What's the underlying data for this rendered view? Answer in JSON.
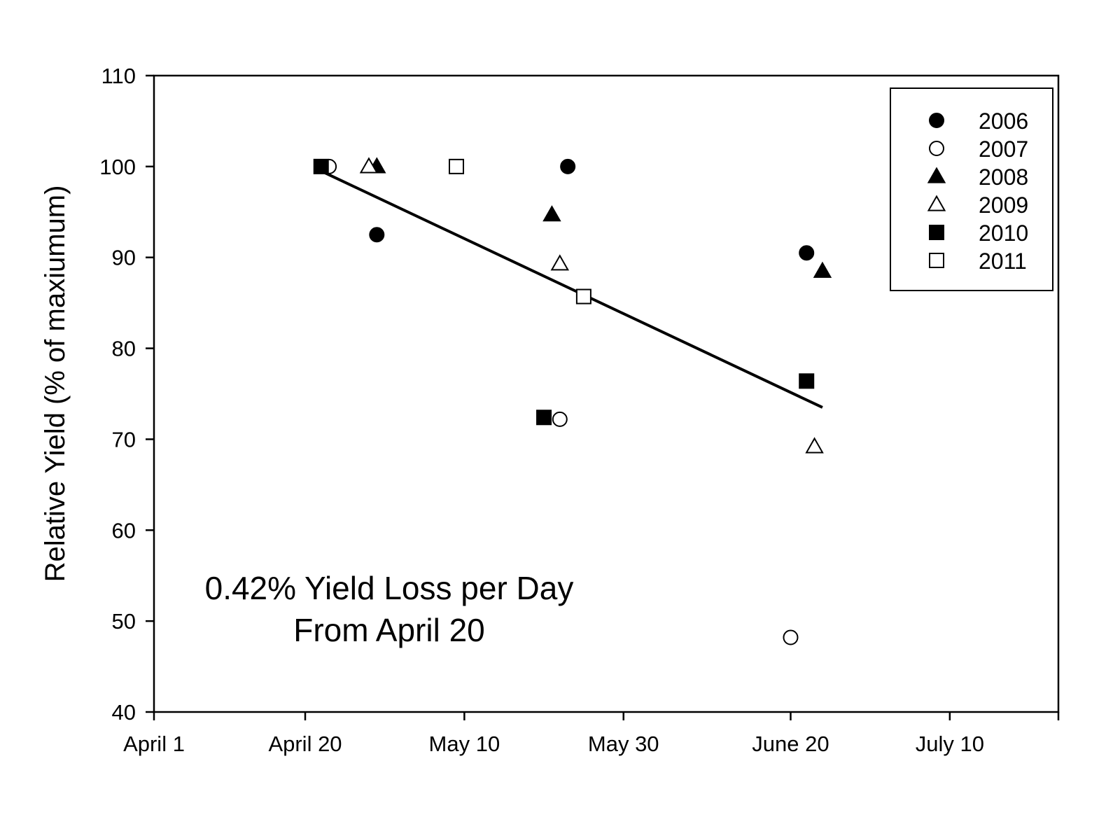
{
  "chart_data": {
    "type": "scatter",
    "title": "",
    "xlabel": "",
    "ylabel": "Relative Yield (% of maxiumum)",
    "x_tick_labels": [
      "April 1",
      "April 20",
      "May 10",
      "May 30",
      "June 20",
      "July 10"
    ],
    "y_ticks": [
      40,
      50,
      60,
      70,
      80,
      90,
      100,
      110
    ],
    "ylim": [
      40,
      110
    ],
    "legend_position": "top-right",
    "grid": false,
    "series": [
      {
        "name": "2006",
        "marker": "circle",
        "filled": true,
        "points": [
          {
            "x": "April 29",
            "y": 92.5
          },
          {
            "x": "May 23",
            "y": 100
          },
          {
            "x": "June 22",
            "y": 90.5
          }
        ]
      },
      {
        "name": "2007",
        "marker": "circle",
        "filled": false,
        "points": [
          {
            "x": "April 23",
            "y": 100
          },
          {
            "x": "May 22",
            "y": 72.2
          },
          {
            "x": "June 20",
            "y": 48.2
          }
        ]
      },
      {
        "name": "2008",
        "marker": "triangle",
        "filled": true,
        "points": [
          {
            "x": "April 29",
            "y": 100
          },
          {
            "x": "May 21",
            "y": 94.7
          },
          {
            "x": "June 24",
            "y": 88.5
          }
        ]
      },
      {
        "name": "2009",
        "marker": "triangle",
        "filled": false,
        "points": [
          {
            "x": "April 28",
            "y": 100
          },
          {
            "x": "May 22",
            "y": 89.3
          },
          {
            "x": "June 23",
            "y": 69.2
          }
        ]
      },
      {
        "name": "2010",
        "marker": "square",
        "filled": true,
        "points": [
          {
            "x": "April 22",
            "y": 100
          },
          {
            "x": "May 20",
            "y": 72.4
          },
          {
            "x": "June 22",
            "y": 76.4
          }
        ]
      },
      {
        "name": "2011",
        "marker": "square",
        "filled": false,
        "points": [
          {
            "x": "May 9",
            "y": 100
          },
          {
            "x": "May 25",
            "y": 85.7
          }
        ]
      }
    ],
    "regression_line": {
      "x_start": "April 22",
      "y_start": 99.5,
      "x_end": "June 24",
      "y_end": 73.5
    },
    "annotation": [
      "0.42% Yield Loss per Day",
      "From April 20"
    ]
  }
}
